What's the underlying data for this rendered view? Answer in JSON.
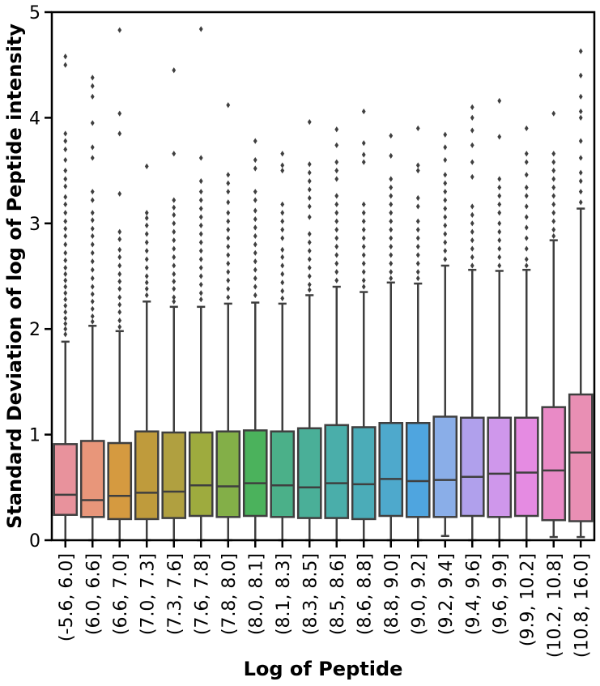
{
  "chart_data": {
    "type": "box",
    "xlabel": "Log of Peptide",
    "ylabel": "Standard Deviation of log of Peptide intensity",
    "ylim": [
      0,
      5
    ],
    "yticks": [
      0,
      1,
      2,
      3,
      4,
      5
    ],
    "grid": false,
    "legend": "none",
    "categories": [
      "(-5.6, 6.0]",
      "(6.0, 6.6]",
      "(6.6, 7.0]",
      "(7.0, 7.3]",
      "(7.3, 7.6]",
      "(7.6, 7.8]",
      "(7.8, 8.0]",
      "(8.0, 8.1]",
      "(8.1, 8.3]",
      "(8.3, 8.5]",
      "(8.5, 8.6]",
      "(8.6, 8.8]",
      "(8.8, 9.0]",
      "(9.0, 9.2]",
      "(9.2, 9.4]",
      "(9.4, 9.6]",
      "(9.6, 9.9]",
      "(9.9, 10.2]",
      "(10.2, 10.8]",
      "(10.8, 16.0]"
    ],
    "colors": [
      "#e8929c",
      "#e8967a",
      "#d59a40",
      "#bf9b3c",
      "#b0a040",
      "#9eab3e",
      "#83af48",
      "#4bb25c",
      "#4bb089",
      "#4aaf98",
      "#4aaeaa",
      "#4bacb8",
      "#4ea9cc",
      "#4fa5df",
      "#8aaee8",
      "#b0a0ec",
      "#cf97eb",
      "#e58be2",
      "#e98ac6",
      "#e98fb4"
    ],
    "boxes": [
      {
        "whisker_low": 0.0,
        "q1": 0.24,
        "median": 0.43,
        "q3": 0.91,
        "whisker_high": 1.88
      },
      {
        "whisker_low": 0.0,
        "q1": 0.22,
        "median": 0.38,
        "q3": 0.94,
        "whisker_high": 2.03
      },
      {
        "whisker_low": 0.0,
        "q1": 0.2,
        "median": 0.42,
        "q3": 0.92,
        "whisker_high": 1.98
      },
      {
        "whisker_low": 0.0,
        "q1": 0.2,
        "median": 0.45,
        "q3": 1.03,
        "whisker_high": 2.26
      },
      {
        "whisker_low": 0.0,
        "q1": 0.21,
        "median": 0.46,
        "q3": 1.02,
        "whisker_high": 2.21
      },
      {
        "whisker_low": 0.0,
        "q1": 0.23,
        "median": 0.52,
        "q3": 1.02,
        "whisker_high": 2.21
      },
      {
        "whisker_low": 0.0,
        "q1": 0.22,
        "median": 0.51,
        "q3": 1.03,
        "whisker_high": 2.24
      },
      {
        "whisker_low": 0.0,
        "q1": 0.23,
        "median": 0.54,
        "q3": 1.04,
        "whisker_high": 2.25
      },
      {
        "whisker_low": 0.0,
        "q1": 0.22,
        "median": 0.52,
        "q3": 1.03,
        "whisker_high": 2.24
      },
      {
        "whisker_low": 0.0,
        "q1": 0.21,
        "median": 0.5,
        "q3": 1.06,
        "whisker_high": 2.32
      },
      {
        "whisker_low": 0.0,
        "q1": 0.21,
        "median": 0.54,
        "q3": 1.09,
        "whisker_high": 2.4
      },
      {
        "whisker_low": 0.0,
        "q1": 0.2,
        "median": 0.53,
        "q3": 1.07,
        "whisker_high": 2.35
      },
      {
        "whisker_low": 0.0,
        "q1": 0.23,
        "median": 0.58,
        "q3": 1.11,
        "whisker_high": 2.44
      },
      {
        "whisker_low": 0.0,
        "q1": 0.22,
        "median": 0.56,
        "q3": 1.11,
        "whisker_high": 2.43
      },
      {
        "whisker_low": 0.04,
        "q1": 0.22,
        "median": 0.57,
        "q3": 1.17,
        "whisker_high": 2.6
      },
      {
        "whisker_low": 0.0,
        "q1": 0.23,
        "median": 0.6,
        "q3": 1.16,
        "whisker_high": 2.56
      },
      {
        "whisker_low": 0.0,
        "q1": 0.22,
        "median": 0.63,
        "q3": 1.16,
        "whisker_high": 2.55
      },
      {
        "whisker_low": 0.0,
        "q1": 0.23,
        "median": 0.64,
        "q3": 1.16,
        "whisker_high": 2.56
      },
      {
        "whisker_low": 0.03,
        "q1": 0.19,
        "median": 0.66,
        "q3": 1.26,
        "whisker_high": 2.84
      },
      {
        "whisker_low": 0.03,
        "q1": 0.18,
        "median": 0.83,
        "q3": 1.38,
        "whisker_high": 3.14
      }
    ],
    "outliers": [
      [
        4.58,
        4.5,
        3.85,
        3.78,
        3.7,
        3.6,
        3.5,
        3.42,
        3.35,
        3.25,
        3.18,
        3.1,
        3.02,
        2.95,
        2.88,
        2.8,
        2.72,
        2.65,
        2.58,
        2.52,
        2.46,
        2.4,
        2.34,
        2.28,
        2.22,
        2.16,
        2.1,
        2.05,
        2.0,
        1.95
      ],
      [
        4.38,
        4.3,
        4.2,
        3.95,
        3.72,
        3.62,
        3.3,
        3.22,
        3.1,
        3.03,
        2.95,
        2.88,
        2.8,
        2.72,
        2.64,
        2.56,
        2.48,
        2.4,
        2.33,
        2.26,
        2.19,
        2.12,
        2.07
      ],
      [
        4.83,
        4.04,
        3.85,
        3.28,
        2.92,
        2.85,
        2.75,
        2.68,
        2.6,
        2.52,
        2.45,
        2.38,
        2.3,
        2.23,
        2.16,
        2.08,
        2.02
      ],
      [
        3.54,
        3.1,
        3.05,
        2.98,
        2.9,
        2.82,
        2.74,
        2.66,
        2.58,
        2.5,
        2.44,
        2.38,
        2.32
      ],
      [
        4.45,
        3.66,
        3.22,
        3.15,
        3.08,
        3.0,
        2.92,
        2.84,
        2.76,
        2.68,
        2.6,
        2.52,
        2.45,
        2.38,
        2.3,
        2.26
      ],
      [
        4.84,
        3.62,
        3.4,
        3.3,
        3.22,
        3.14,
        3.06,
        2.98,
        2.9,
        2.82,
        2.74,
        2.66,
        2.58,
        2.5,
        2.42,
        2.34,
        2.28
      ],
      [
        4.12,
        3.46,
        3.38,
        3.3,
        3.2,
        3.1,
        3.02,
        2.94,
        2.86,
        2.78,
        2.7,
        2.62,
        2.54,
        2.46,
        2.38,
        2.3
      ],
      [
        3.78,
        3.6,
        3.52,
        3.3,
        3.22,
        3.12,
        3.04,
        2.96,
        2.88,
        2.8,
        2.72,
        2.64,
        2.56,
        2.48,
        2.4,
        2.32
      ],
      [
        3.66,
        3.55,
        3.5,
        3.18,
        3.1,
        3.02,
        2.94,
        2.86,
        2.75,
        2.68,
        2.6,
        2.52,
        2.44,
        2.36,
        2.29
      ],
      [
        3.96,
        3.56,
        3.48,
        3.4,
        3.32,
        3.24,
        3.16,
        3.06,
        2.9,
        2.82,
        2.74,
        2.66,
        2.58,
        2.5,
        2.42,
        2.37
      ],
      [
        3.89,
        3.74,
        3.58,
        3.5,
        3.42,
        3.26,
        3.18,
        3.1,
        3.02,
        2.94,
        2.86,
        2.78,
        2.7,
        2.62,
        2.54,
        2.46
      ],
      [
        4.06,
        3.76,
        3.65,
        3.58,
        3.18,
        3.1,
        3.02,
        2.94,
        2.86,
        2.78,
        2.7,
        2.62,
        2.54,
        2.46,
        2.4
      ],
      [
        3.83,
        3.64,
        3.42,
        3.34,
        3.26,
        3.18,
        3.1,
        3.02,
        2.94,
        2.86,
        2.78,
        2.7,
        2.62,
        2.54,
        2.48
      ],
      [
        3.9,
        3.55,
        3.5,
        3.24,
        3.16,
        3.02,
        2.94,
        2.86,
        2.78,
        2.7,
        2.62,
        2.54,
        2.48
      ],
      [
        3.84,
        3.72,
        3.6,
        3.46,
        3.38,
        3.3,
        3.22,
        3.14,
        3.06,
        2.98,
        2.9,
        2.82,
        2.74,
        2.66
      ],
      [
        4.1,
        4.0,
        3.88,
        3.74,
        3.58,
        3.44,
        3.16,
        3.08,
        3.0,
        2.92,
        2.84,
        2.76,
        2.68,
        2.6
      ],
      [
        4.16,
        3.82,
        3.42,
        3.34,
        3.26,
        3.18,
        3.1,
        3.0,
        2.92,
        2.84,
        2.76,
        2.68,
        2.6
      ],
      [
        3.9,
        3.66,
        3.58,
        3.46,
        3.34,
        3.26,
        3.16,
        3.06,
        2.96,
        2.86,
        2.76,
        2.66,
        2.6
      ],
      [
        4.04,
        3.66,
        3.58,
        3.5,
        3.42,
        3.34,
        3.26,
        3.18,
        3.1,
        3.02,
        2.94,
        2.88
      ],
      [
        4.63,
        4.4,
        4.2,
        4.06,
        4.0,
        3.78,
        3.62,
        3.48,
        3.4,
        3.3,
        3.2
      ]
    ]
  }
}
